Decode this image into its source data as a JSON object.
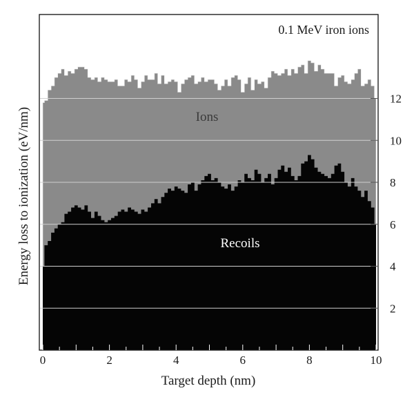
{
  "chart_data": {
    "type": "area",
    "title": "0.1 MeV iron ions",
    "xlabel": "Target depth (nm)",
    "ylabel": "Energy loss to ionization (eV/nm)",
    "xlim": [
      0,
      10
    ],
    "ylim": [
      0,
      16
    ],
    "x_ticks": [
      0,
      2,
      4,
      6,
      8,
      10
    ],
    "y_ticks": [
      2,
      4,
      6,
      8,
      10,
      12
    ],
    "y_axis_position": "right",
    "grid": "horizontal",
    "series": [
      {
        "name": "Ions",
        "color": "#8a8a8a",
        "x": [
          0,
          0.1,
          0.2,
          0.3,
          0.4,
          0.5,
          0.6,
          0.7,
          0.8,
          0.9,
          1.0,
          1.1,
          1.2,
          1.3,
          1.4,
          1.5,
          1.6,
          1.7,
          1.8,
          1.9,
          2.0,
          2.1,
          2.2,
          2.3,
          2.4,
          2.5,
          2.6,
          2.7,
          2.8,
          2.9,
          3.0,
          3.1,
          3.2,
          3.3,
          3.4,
          3.5,
          3.6,
          3.7,
          3.8,
          3.9,
          4.0,
          4.1,
          4.2,
          4.3,
          4.4,
          4.5,
          4.6,
          4.7,
          4.8,
          4.9,
          5.0,
          5.1,
          5.2,
          5.3,
          5.4,
          5.5,
          5.6,
          5.7,
          5.8,
          5.9,
          6.0,
          6.1,
          6.2,
          6.3,
          6.4,
          6.5,
          6.6,
          6.7,
          6.8,
          6.9,
          7.0,
          7.1,
          7.2,
          7.3,
          7.4,
          7.5,
          7.6,
          7.7,
          7.8,
          7.9,
          8.0,
          8.1,
          8.2,
          8.3,
          8.4,
          8.5,
          8.6,
          8.7,
          8.8,
          8.9,
          9.0,
          9.1,
          9.2,
          9.3,
          9.4,
          9.5,
          9.6,
          9.7,
          9.8,
          9.9,
          10.0
        ],
        "values": [
          11.8,
          11.9,
          12.4,
          12.6,
          13.0,
          13.2,
          13.4,
          13.1,
          13.3,
          13.2,
          13.4,
          13.5,
          13.5,
          13.4,
          13.0,
          12.9,
          13.0,
          12.8,
          13.0,
          12.9,
          12.8,
          12.8,
          12.9,
          12.6,
          12.6,
          12.9,
          12.8,
          13.1,
          12.9,
          12.5,
          12.8,
          13.1,
          12.9,
          12.9,
          13.2,
          12.7,
          13.1,
          12.7,
          12.8,
          12.9,
          12.8,
          12.3,
          12.7,
          12.9,
          13.0,
          13.1,
          12.7,
          12.8,
          13.0,
          12.8,
          12.9,
          12.9,
          12.7,
          12.4,
          12.6,
          12.9,
          12.6,
          13.0,
          13.1,
          12.9,
          12.3,
          12.7,
          13.0,
          12.4,
          12.9,
          12.7,
          12.8,
          12.5,
          13.0,
          13.3,
          13.2,
          13.1,
          13.2,
          13.4,
          13.1,
          13.4,
          13.2,
          13.5,
          13.6,
          13.2,
          13.8,
          13.7,
          13.3,
          13.6,
          13.4,
          13.2,
          13.2,
          13.2,
          12.6,
          13.0,
          13.1,
          12.8,
          12.7,
          12.9,
          13.2,
          13.4,
          12.6,
          12.7,
          12.9,
          12.6,
          12.0
        ]
      },
      {
        "name": "Recoils",
        "color": "#050505",
        "x": [
          0,
          0.1,
          0.2,
          0.3,
          0.4,
          0.5,
          0.6,
          0.7,
          0.8,
          0.9,
          1.0,
          1.1,
          1.2,
          1.3,
          1.4,
          1.5,
          1.6,
          1.7,
          1.8,
          1.9,
          2.0,
          2.1,
          2.2,
          2.3,
          2.4,
          2.5,
          2.6,
          2.7,
          2.8,
          2.9,
          3.0,
          3.1,
          3.2,
          3.3,
          3.4,
          3.5,
          3.6,
          3.7,
          3.8,
          3.9,
          4.0,
          4.1,
          4.2,
          4.3,
          4.4,
          4.5,
          4.6,
          4.7,
          4.8,
          4.9,
          5.0,
          5.1,
          5.2,
          5.3,
          5.4,
          5.5,
          5.6,
          5.7,
          5.8,
          5.9,
          6.0,
          6.1,
          6.2,
          6.3,
          6.4,
          6.5,
          6.6,
          6.7,
          6.8,
          6.9,
          7.0,
          7.1,
          7.2,
          7.3,
          7.4,
          7.5,
          7.6,
          7.7,
          7.8,
          7.9,
          8.0,
          8.1,
          8.2,
          8.3,
          8.4,
          8.5,
          8.6,
          8.7,
          8.8,
          8.9,
          9.0,
          9.1,
          9.2,
          9.3,
          9.4,
          9.5,
          9.6,
          9.7,
          9.8,
          9.9,
          10.0
        ],
        "values": [
          4.0,
          5.0,
          5.2,
          5.6,
          5.8,
          6.0,
          6.1,
          6.5,
          6.6,
          6.8,
          6.9,
          6.8,
          6.7,
          6.9,
          6.6,
          6.3,
          6.6,
          6.4,
          6.2,
          6.1,
          6.2,
          6.3,
          6.4,
          6.6,
          6.7,
          6.6,
          6.8,
          6.7,
          6.6,
          6.5,
          6.7,
          6.6,
          6.8,
          7.0,
          7.2,
          7.0,
          7.3,
          7.5,
          7.7,
          7.6,
          7.8,
          7.7,
          7.6,
          7.5,
          7.9,
          8.0,
          7.6,
          7.9,
          8.1,
          8.3,
          8.4,
          8.1,
          8.2,
          8.0,
          7.8,
          7.7,
          7.9,
          7.6,
          7.8,
          8.1,
          8.0,
          8.4,
          8.2,
          8.1,
          8.6,
          8.4,
          8.0,
          8.2,
          8.4,
          7.9,
          8.2,
          8.6,
          8.8,
          8.5,
          8.7,
          8.3,
          8.1,
          8.3,
          8.9,
          9.0,
          9.3,
          9.1,
          8.7,
          8.5,
          8.4,
          8.3,
          8.2,
          8.4,
          8.8,
          8.9,
          8.5,
          8.0,
          7.8,
          8.2,
          7.8,
          7.6,
          7.3,
          7.6,
          7.1,
          6.8,
          6.0
        ]
      }
    ]
  }
}
